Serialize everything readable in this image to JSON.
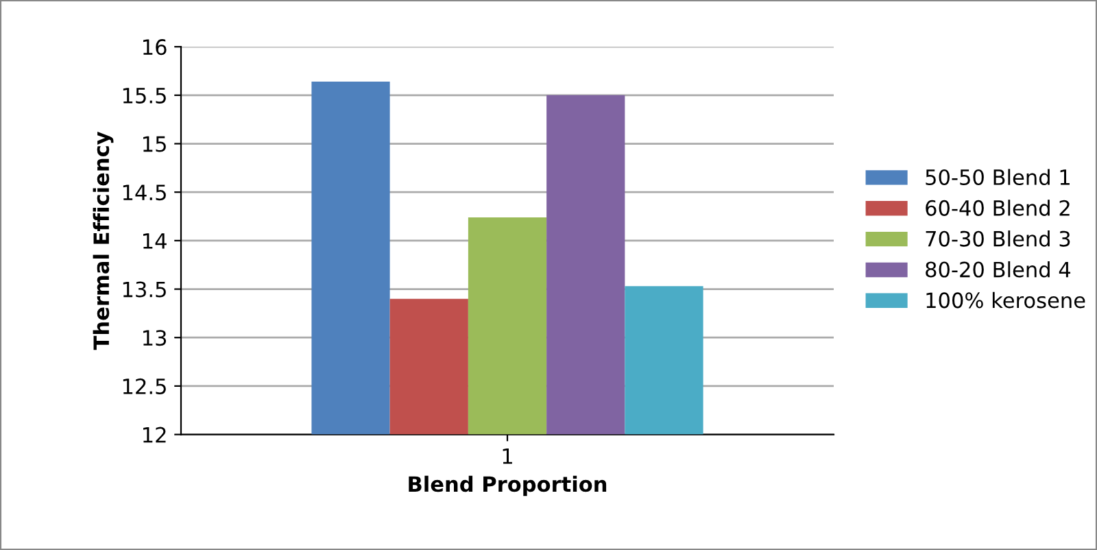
{
  "chart_data": {
    "type": "bar",
    "xlabel": "Blend Proportion",
    "ylabel": "Thermal Efficiency",
    "categories": [
      "1"
    ],
    "series": [
      {
        "name": "50-50 Blend 1",
        "color": "#4f81bd",
        "values": [
          15.64
        ]
      },
      {
        "name": "60-40 Blend 2",
        "color": "#c0504d",
        "values": [
          13.4
        ]
      },
      {
        "name": "70-30 Blend 3",
        "color": "#9bbb59",
        "values": [
          14.24
        ]
      },
      {
        "name": "80-20 Blend 4",
        "color": "#8064a2",
        "values": [
          15.5
        ]
      },
      {
        "name": "100% kerosene",
        "color": "#4bacc6",
        "values": [
          13.53
        ]
      }
    ],
    "ylim": [
      12,
      16
    ],
    "yticks": [
      12,
      12.5,
      13,
      13.5,
      14,
      14.5,
      15,
      15.5,
      16
    ],
    "grid": "y",
    "legend": "right"
  }
}
